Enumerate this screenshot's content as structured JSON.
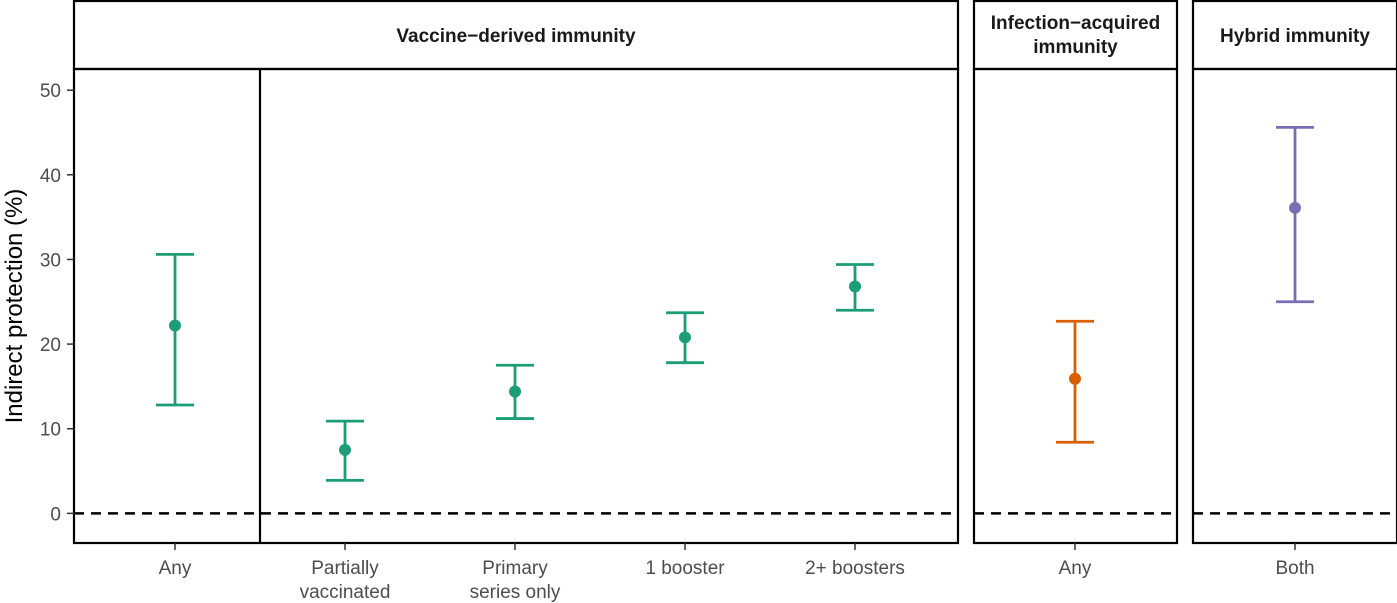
{
  "chart_data": {
    "type": "scatter",
    "ylabel": "Indirect protection (%)",
    "ylim": [
      -3.5,
      52.5
    ],
    "yticks": [
      0,
      10,
      20,
      30,
      40,
      50
    ],
    "reference_line": 0,
    "panels": [
      {
        "strip": "Vaccine−derived immunity",
        "color": "#1b9e77",
        "points": [
          {
            "category": "Any",
            "lines": [
              "Any"
            ],
            "estimate": 22.2,
            "lower": 12.8,
            "upper": 30.6
          },
          {
            "category": "Partially vaccinated",
            "lines": [
              "Partially",
              "vaccinated"
            ],
            "estimate": 7.5,
            "lower": 3.9,
            "upper": 10.9
          },
          {
            "category": "Primary series only",
            "lines": [
              "Primary",
              "series only"
            ],
            "estimate": 14.4,
            "lower": 11.2,
            "upper": 17.5
          },
          {
            "category": "1 booster",
            "lines": [
              "1 booster"
            ],
            "estimate": 20.8,
            "lower": 17.8,
            "upper": 23.7
          },
          {
            "category": "2+ boosters",
            "lines": [
              "2+ boosters"
            ],
            "estimate": 26.8,
            "lower": 24.0,
            "upper": 29.4
          }
        ]
      },
      {
        "strip": "Infection−acquired immunity",
        "strip_lines": [
          "Infection−acquired",
          "immunity"
        ],
        "color": "#d95f02",
        "points": [
          {
            "category": "Any",
            "lines": [
              "Any"
            ],
            "estimate": 15.9,
            "lower": 8.4,
            "upper": 22.7
          }
        ]
      },
      {
        "strip": "Hybrid immunity",
        "color": "#7570b3",
        "points": [
          {
            "category": "Both",
            "lines": [
              "Both"
            ],
            "estimate": 36.1,
            "lower": 25.0,
            "upper": 45.6
          }
        ]
      }
    ]
  }
}
